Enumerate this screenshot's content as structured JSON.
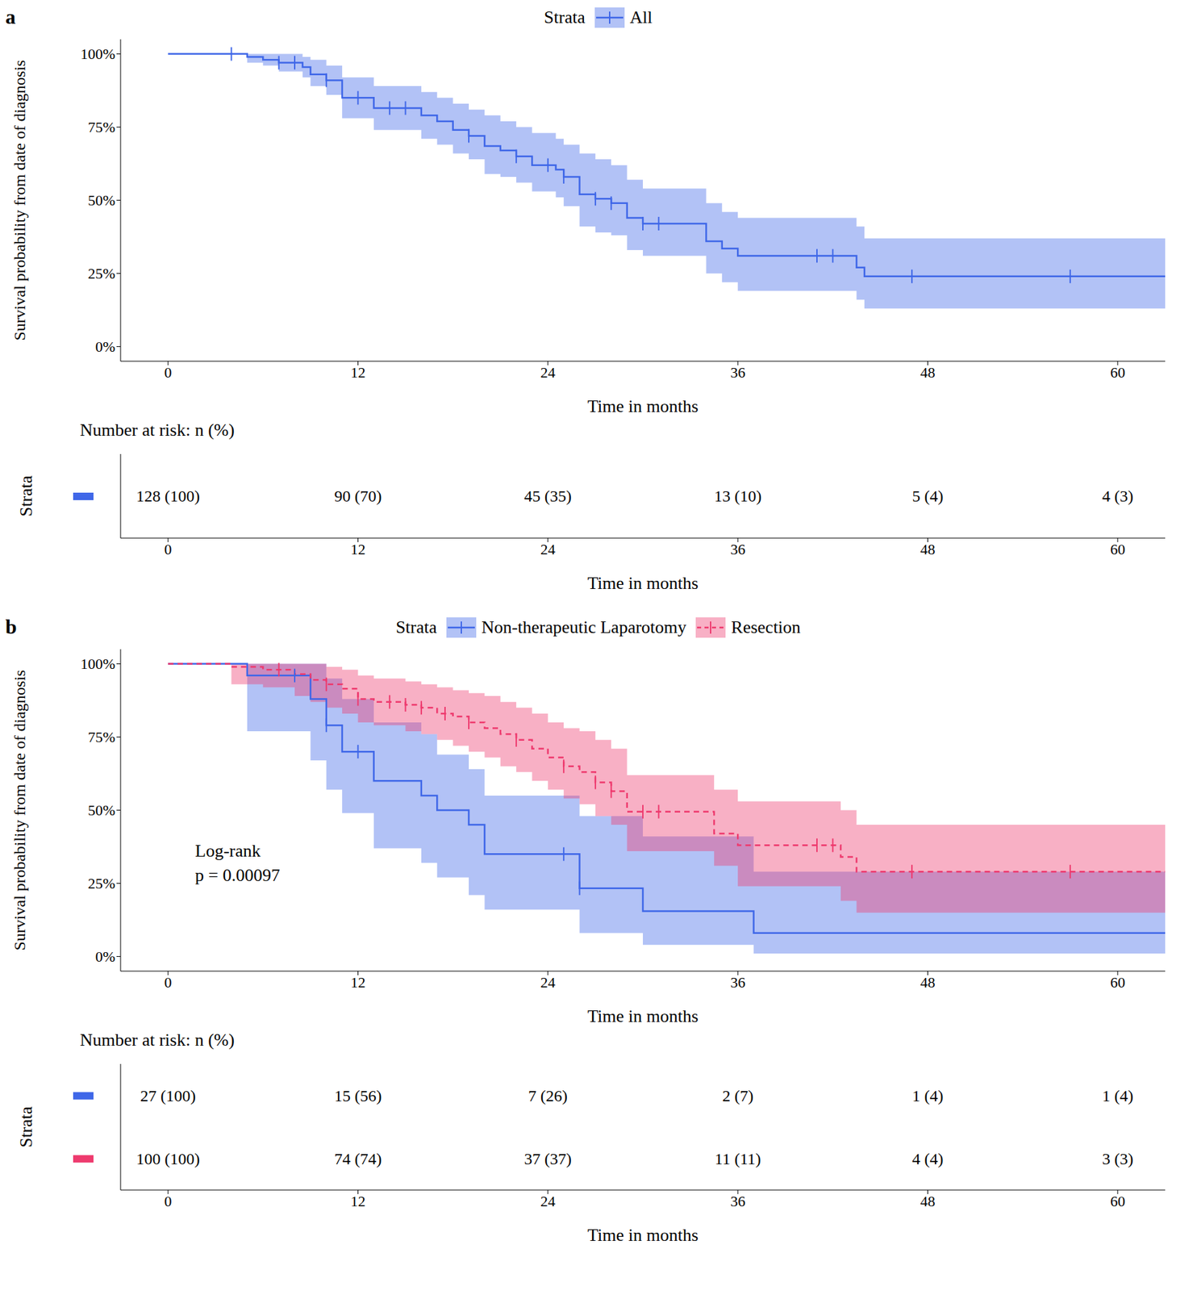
{
  "chart_data": [
    {
      "type": "step",
      "panel_label": "a",
      "legend": "top",
      "legend_title": "Strata",
      "grid": false,
      "x_label": "Time in months",
      "y_label": "Survival probability from date of diagnosis",
      "xlim": [
        -3,
        63
      ],
      "xticks": [
        0,
        12,
        24,
        36,
        48,
        60
      ],
      "ylim": [
        -5,
        105
      ],
      "yticks": [
        {
          "value": 0,
          "label": "0%"
        },
        {
          "value": 25,
          "label": "25%"
        },
        {
          "value": 50,
          "label": "50%"
        },
        {
          "value": 75,
          "label": "75%"
        },
        {
          "value": 100,
          "label": "100%"
        }
      ],
      "series": [
        {
          "name": "All",
          "color": "#3f67e8",
          "line_style": "solid",
          "x": [
            0,
            5,
            6,
            7,
            8.5,
            9,
            10,
            11,
            13,
            16,
            17,
            18,
            19,
            20,
            21,
            22,
            23,
            24.5,
            25,
            26,
            27,
            28,
            29,
            30,
            34,
            35,
            36,
            43.5,
            44,
            63
          ],
          "values": [
            100,
            99,
            98,
            97,
            95.5,
            93,
            91,
            85,
            81.5,
            79,
            77,
            74,
            72,
            68.5,
            67,
            65,
            62,
            60.5,
            58,
            52,
            50.5,
            49,
            44,
            42,
            36,
            33.5,
            31,
            27,
            24,
            24
          ],
          "lower": [
            100,
            97,
            96,
            94,
            92,
            89,
            86,
            78,
            74,
            71,
            69,
            66,
            64,
            59,
            58,
            56,
            53,
            51,
            48,
            41,
            39,
            38,
            33,
            31,
            25,
            22,
            19,
            16,
            13,
            13
          ],
          "upper": [
            100,
            100,
            100,
            100,
            99,
            98,
            96,
            92,
            89,
            87,
            85,
            83,
            81,
            79,
            77,
            75,
            73,
            71,
            69,
            66,
            64,
            62,
            57,
            54,
            49,
            46,
            44,
            41,
            37,
            37
          ],
          "censor_x": [
            4,
            7,
            8,
            10,
            12,
            14,
            15,
            19,
            22,
            24,
            25,
            27,
            28,
            30,
            31,
            41,
            42,
            47,
            57
          ],
          "censor_y": [
            100,
            97,
            97,
            91,
            85,
            81.5,
            81.5,
            72,
            65,
            62,
            58,
            50.5,
            49,
            42,
            42,
            31,
            31,
            24,
            24
          ]
        }
      ],
      "risk_table": {
        "title": "Number at risk: n (%)",
        "row_label": "Strata",
        "x": [
          0,
          12,
          24,
          36,
          48,
          60
        ],
        "rows": [
          [
            "128 (100)",
            "90 (70)",
            "45 (35)",
            "13 (10)",
            "5 (4)",
            "4 (3)"
          ]
        ]
      }
    },
    {
      "type": "step",
      "panel_label": "b",
      "legend": "top",
      "legend_title": "Strata",
      "grid": false,
      "x_label": "Time in months",
      "y_label": "Survival probability from date of diagnosis",
      "annotation": [
        "Log-rank",
        "p = 0.00097"
      ],
      "xlim": [
        -3,
        63
      ],
      "xticks": [
        0,
        12,
        24,
        36,
        48,
        60
      ],
      "ylim": [
        -5,
        105
      ],
      "yticks": [
        {
          "value": 0,
          "label": "0%"
        },
        {
          "value": 25,
          "label": "25%"
        },
        {
          "value": 50,
          "label": "50%"
        },
        {
          "value": 75,
          "label": "75%"
        },
        {
          "value": 100,
          "label": "100%"
        }
      ],
      "series": [
        {
          "name": "Non-therapeutic Laparotomy",
          "color": "#3f67e8",
          "line_style": "solid",
          "x": [
            0,
            5,
            9,
            10,
            11,
            13,
            16,
            17,
            19,
            20,
            26,
            30,
            37,
            63
          ],
          "values": [
            100,
            96,
            88,
            79,
            70,
            60,
            55,
            50,
            45,
            35,
            23.3,
            15.5,
            8,
            8
          ],
          "lower": [
            100,
            77,
            67,
            57,
            49,
            37,
            32,
            27,
            21,
            16,
            8,
            4,
            1,
            1
          ],
          "upper": [
            100,
            100,
            100,
            95,
            88,
            80,
            76,
            69,
            64,
            55,
            48,
            41,
            29,
            29
          ],
          "censor_x": [
            8,
            10,
            12,
            25,
            26
          ],
          "censor_y": [
            96,
            79,
            70,
            35,
            23.3
          ]
        },
        {
          "name": "Resection",
          "color": "#ee3a6e",
          "line_style": "dashed",
          "x": [
            0,
            4,
            6,
            8,
            9,
            10,
            11,
            12,
            13,
            15,
            16,
            17,
            18,
            19,
            20,
            21,
            22,
            23,
            24,
            25,
            26,
            27,
            28,
            29,
            34.5,
            36,
            42.5,
            43.5,
            63
          ],
          "values": [
            100,
            99,
            98,
            96.5,
            94.5,
            93,
            91.5,
            88,
            87,
            86,
            85,
            83,
            82,
            80,
            78,
            76,
            74,
            71,
            68,
            65,
            63,
            59.5,
            56.5,
            49.5,
            42,
            38,
            34,
            29,
            29
          ],
          "lower": [
            100,
            93,
            92,
            89,
            87,
            85,
            83,
            80,
            79,
            77,
            76,
            74,
            72,
            70,
            68,
            65,
            63,
            60,
            57,
            54,
            52,
            48,
            45,
            36,
            31,
            24,
            19,
            15,
            15
          ],
          "upper": [
            100,
            100,
            100,
            100,
            100,
            99,
            98,
            96,
            95,
            94,
            93,
            92,
            91,
            90,
            89,
            87,
            85,
            83,
            80,
            78,
            77,
            74,
            71,
            62,
            57,
            53,
            50,
            45,
            45
          ],
          "censor_x": [
            7,
            10,
            12,
            14,
            15,
            16,
            17.5,
            19,
            22,
            25,
            27,
            28,
            30,
            31,
            41,
            42,
            47,
            57
          ],
          "censor_y": [
            98,
            93,
            88,
            87,
            86,
            85,
            83,
            80,
            74,
            65,
            59.5,
            56.5,
            49.5,
            49.5,
            38,
            38,
            29,
            29
          ]
        }
      ],
      "risk_table": {
        "title": "Number at risk: n (%)",
        "row_label": "Strata",
        "x": [
          0,
          12,
          24,
          36,
          48,
          60
        ],
        "rows": [
          [
            "27 (100)",
            "15 (56)",
            "7 (26)",
            "2 (7)",
            "1 (4)",
            "1 (4)"
          ],
          [
            "100 (100)",
            "74 (74)",
            "37 (37)",
            "11 (11)",
            "4 (4)",
            "3 (3)"
          ]
        ]
      }
    }
  ]
}
